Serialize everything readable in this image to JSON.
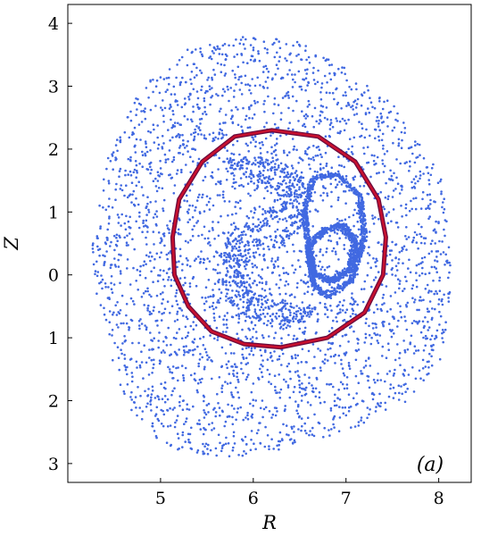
{
  "chart_data": {
    "type": "scatter",
    "xlabel": "R",
    "ylabel": "Z",
    "panel_label": "(a)",
    "xlim": [
      4.0,
      8.35
    ],
    "ylim": [
      -3.3,
      4.3
    ],
    "x_ticks": [
      {
        "value": 5,
        "label": "5"
      },
      {
        "value": 6,
        "label": "6"
      },
      {
        "value": 7,
        "label": "7"
      },
      {
        "value": 8,
        "label": "8"
      }
    ],
    "y_ticks": [
      {
        "value": 4,
        "label": "4"
      },
      {
        "value": 3,
        "label": "3"
      },
      {
        "value": 2,
        "label": "2"
      },
      {
        "value": 1,
        "label": "1"
      },
      {
        "value": 0,
        "label": "0"
      },
      {
        "value": -1,
        "label": "1"
      },
      {
        "value": -2,
        "label": "2"
      },
      {
        "value": -3,
        "label": "3"
      }
    ],
    "grid": false,
    "colors": {
      "scatter": "#4169e1",
      "separatrix": "#c8102e",
      "separatrix_edge": "#6a0a3c"
    },
    "outer_boundary": [
      [
        5.9,
        3.85
      ],
      [
        6.5,
        3.7
      ],
      [
        7.0,
        3.3
      ],
      [
        7.6,
        2.6
      ],
      [
        8.05,
        1.5
      ],
      [
        8.15,
        0.0
      ],
      [
        8.05,
        -1.3
      ],
      [
        7.6,
        -2.1
      ],
      [
        6.9,
        -2.55
      ],
      [
        6.0,
        -2.9
      ],
      [
        5.4,
        -2.95
      ],
      [
        5.0,
        -2.75
      ],
      [
        4.6,
        -2.0
      ],
      [
        4.35,
        -0.8
      ],
      [
        4.25,
        0.3
      ],
      [
        4.4,
        1.8
      ],
      [
        4.8,
        3.0
      ],
      [
        5.3,
        3.6
      ]
    ],
    "separatrix": [
      [
        6.2,
        2.3
      ],
      [
        6.7,
        2.2
      ],
      [
        7.1,
        1.8
      ],
      [
        7.35,
        1.2
      ],
      [
        7.43,
        0.6
      ],
      [
        7.4,
        0.0
      ],
      [
        7.2,
        -0.6
      ],
      [
        6.8,
        -1.0
      ],
      [
        6.3,
        -1.15
      ],
      [
        5.9,
        -1.1
      ],
      [
        5.55,
        -0.9
      ],
      [
        5.3,
        -0.5
      ],
      [
        5.15,
        0.0
      ],
      [
        5.13,
        0.6
      ],
      [
        5.2,
        1.2
      ],
      [
        5.45,
        1.8
      ],
      [
        5.8,
        2.2
      ]
    ],
    "island_outer": [
      [
        6.65,
        1.55
      ],
      [
        6.9,
        1.6
      ],
      [
        7.15,
        1.25
      ],
      [
        7.2,
        0.6
      ],
      [
        7.05,
        -0.1
      ],
      [
        6.8,
        -0.35
      ],
      [
        6.65,
        -0.15
      ],
      [
        6.6,
        0.4
      ],
      [
        6.55,
        1.0
      ]
    ],
    "island_inner": [
      [
        6.95,
        0.8
      ],
      [
        7.1,
        0.55
      ],
      [
        7.05,
        0.1
      ],
      [
        6.85,
        -0.1
      ],
      [
        6.65,
        0.0
      ],
      [
        6.6,
        0.45
      ],
      [
        6.75,
        0.7
      ]
    ],
    "inner_chaotic_band": [
      [
        5.7,
        1.75
      ],
      [
        6.1,
        1.8
      ],
      [
        6.45,
        1.55
      ],
      [
        6.5,
        1.0
      ],
      [
        6.35,
        0.55
      ],
      [
        6.0,
        0.5
      ],
      [
        5.85,
        0.0
      ],
      [
        6.0,
        -0.4
      ],
      [
        6.4,
        -0.5
      ],
      [
        6.7,
        -0.6
      ],
      [
        6.3,
        -0.75
      ],
      [
        5.9,
        -0.6
      ],
      [
        5.75,
        -0.1
      ],
      [
        5.8,
        0.6
      ],
      [
        6.2,
        0.9
      ],
      [
        6.35,
        1.3
      ],
      [
        6.0,
        1.6
      ]
    ]
  }
}
